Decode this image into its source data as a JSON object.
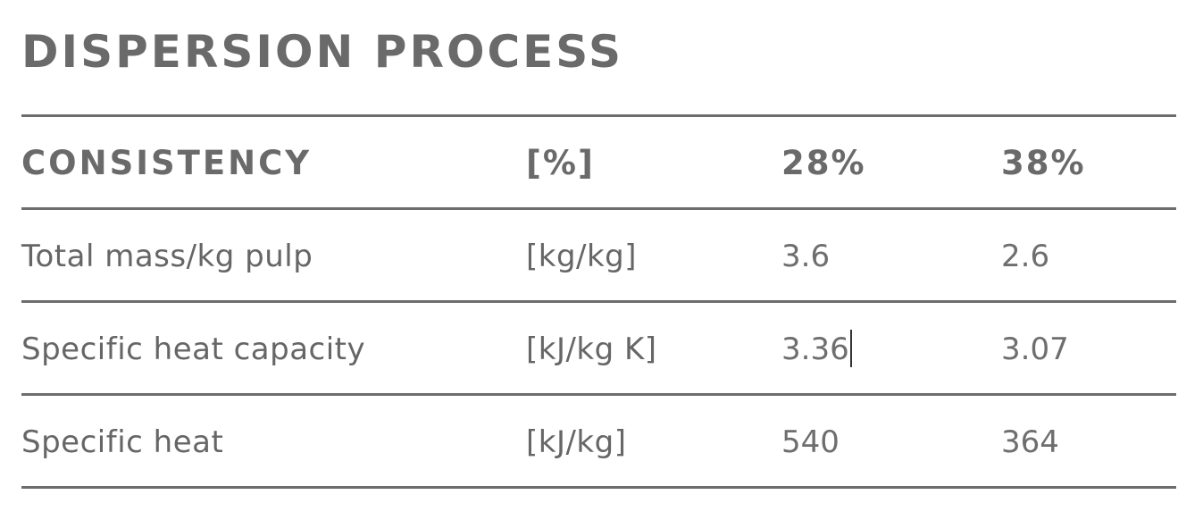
{
  "title": "DISPERSION PROCESS",
  "table": {
    "header": [
      "CONSISTENCY",
      "[%]",
      "28%",
      "38%"
    ],
    "rows": [
      [
        "Total mass/kg pulp",
        "[kg/kg]",
        "3.6",
        "2.6"
      ],
      [
        "Specific heat capacity",
        "[kJ/kg K]",
        "3.36",
        "3.07"
      ],
      [
        "Specific heat",
        "[kJ/kg]",
        "540",
        "364"
      ]
    ]
  }
}
